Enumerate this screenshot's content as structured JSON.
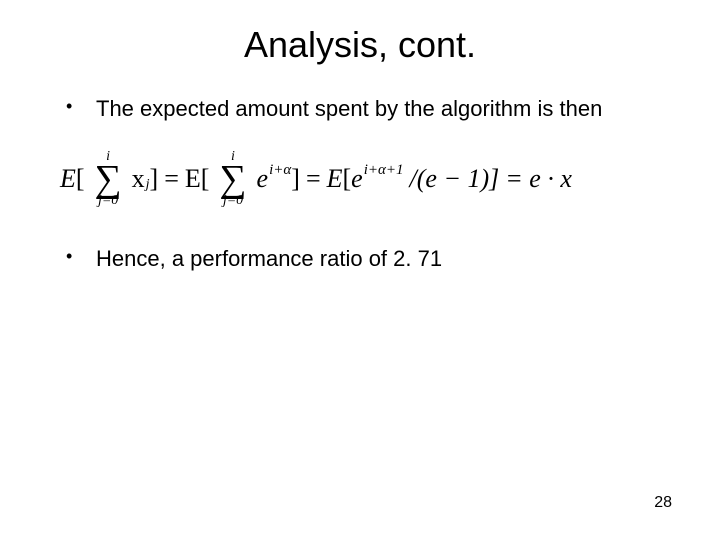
{
  "slide": {
    "title": "Analysis, cont.",
    "bullets": [
      "The expected amount spent by the algorithm is then",
      "Hence, a performance ratio of 2. 71"
    ],
    "page_number": "28",
    "equation": {
      "E_open": "E",
      "lbr": "[",
      "rbr": "]",
      "sum_upper": "i",
      "sum_lower1": "j=0",
      "sum_lower2": "j=0",
      "term_x": "x",
      "term_j": "j",
      "eq": " = ",
      "term_e": "e",
      "exp1": "i+α",
      "exp2": "i+α+1",
      "divexpr": " /(e − 1)]",
      "tail": " = e · x"
    }
  },
  "style": {
    "title_color": "#000000",
    "text_color": "#000000",
    "background": "#ffffff",
    "title_fontsize": 36,
    "body_fontsize": 22,
    "eq_fontsize": 26
  }
}
